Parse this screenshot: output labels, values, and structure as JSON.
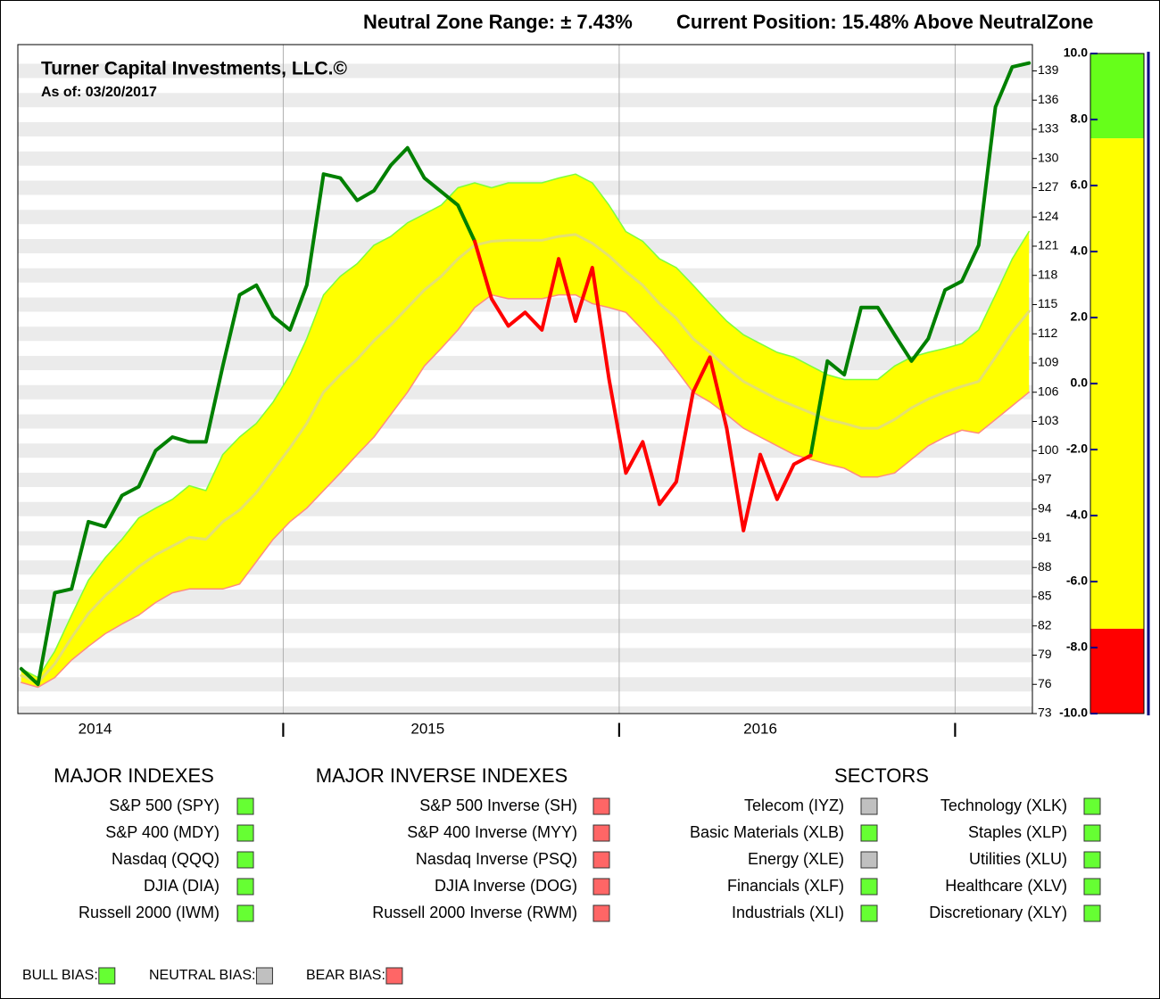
{
  "header": [
    "Neutral Zone Range: ± 7.43%",
    "Current Position: 15.48% Above NeutralZone"
  ],
  "chart_data": [
    {
      "type": "line",
      "title": "Turner Capital Investments, LLC.©",
      "subtitle": "As of: 03/20/2017",
      "x": [
        2014.22,
        2014.27,
        2014.32,
        2014.37,
        2014.42,
        2014.47,
        2014.52,
        2014.57,
        2014.62,
        2014.67,
        2014.72,
        2014.77,
        2014.82,
        2014.87,
        2014.92,
        2014.97,
        2015.02,
        2015.07,
        2015.12,
        2015.17,
        2015.22,
        2015.27,
        2015.32,
        2015.37,
        2015.42,
        2015.47,
        2015.52,
        2015.57,
        2015.62,
        2015.67,
        2015.72,
        2015.77,
        2015.82,
        2015.87,
        2015.92,
        2015.97,
        2016.02,
        2016.07,
        2016.12,
        2016.17,
        2016.22,
        2016.27,
        2016.32,
        2016.37,
        2016.42,
        2016.47,
        2016.52,
        2016.57,
        2016.62,
        2016.67,
        2016.72,
        2016.77,
        2016.82,
        2016.87,
        2016.92,
        2016.97,
        2017.02,
        2017.07,
        2017.12,
        2017.17,
        2017.22
      ],
      "series": [
        {
          "color": "#7cff3c",
          "values": [
            77.6,
            76.7,
            79.4,
            83.1,
            86.7,
            89,
            90.9,
            93.1,
            94.1,
            95,
            96.4,
            95.9,
            99.6,
            101.4,
            102.8,
            105,
            107.8,
            111.5,
            116,
            117.9,
            119.2,
            121.1,
            122,
            123.4,
            124.3,
            125.2,
            127,
            127.5,
            127,
            127.5,
            127.5,
            127.5,
            128,
            128.4,
            127.5,
            125.2,
            122.5,
            121.5,
            119.7,
            118.8,
            117,
            115.1,
            113.3,
            111.9,
            111,
            110.1,
            109.6,
            108.7,
            107.8,
            107.3,
            107.3,
            107.3,
            108.7,
            109.6,
            110.1,
            110.5,
            111,
            112.4,
            116,
            119.7,
            122.5
          ]
        },
        {
          "color": "#ff8a80",
          "values": [
            76.2,
            75.7,
            76.7,
            78.5,
            79.9,
            81.2,
            82.2,
            83.1,
            84.4,
            85.4,
            85.8,
            85.8,
            85.8,
            86.3,
            88.6,
            90.9,
            92.7,
            94.1,
            95.9,
            97.7,
            99.6,
            101.4,
            103.7,
            106,
            108.7,
            110.5,
            112.4,
            114.7,
            116,
            115.6,
            115.6,
            115.6,
            116,
            116,
            115.1,
            114.7,
            114.2,
            112.4,
            110.5,
            108.3,
            106,
            105,
            103.7,
            102.3,
            101.4,
            100.5,
            99.6,
            99.1,
            98.6,
            98.2,
            97.3,
            97.3,
            97.7,
            99.1,
            100.5,
            101.4,
            102.1,
            101.8,
            103.2,
            104.6,
            106
          ]
        },
        {
          "color": "#e4e070",
          "values": [
            76.9,
            76.2,
            78.1,
            80.8,
            83.3,
            85.1,
            86.6,
            88.1,
            89.3,
            90.2,
            91.1,
            90.9,
            92.7,
            93.9,
            95.7,
            98,
            100.3,
            102.8,
            106,
            107.8,
            109.4,
            111.3,
            112.9,
            114.7,
            116.5,
            117.9,
            119.7,
            121.1,
            121.5,
            121.6,
            121.6,
            121.6,
            122,
            122.2,
            121.3,
            120,
            118.4,
            117,
            115.1,
            113.6,
            111.5,
            110.1,
            108.5,
            107.1,
            106.2,
            105.3,
            104.6,
            103.9,
            103.2,
            102.8,
            102.3,
            102.3,
            103.2,
            104.4,
            105.3,
            106,
            106.6,
            107.1,
            109.6,
            112.2,
            114.3
          ]
        },
        {
          "color": "#008000",
          "values": [
            77.6,
            76,
            85.4,
            85.8,
            92.7,
            92.2,
            95.4,
            96.3,
            100,
            101.4,
            100.9,
            100.9,
            108.7,
            116,
            117,
            113.8,
            112.4,
            117,
            128.4,
            128,
            125.7,
            126.7,
            129.3,
            131.1,
            128,
            126.6,
            125.2,
            121.5,
            null,
            null,
            null,
            null,
            null,
            null,
            null,
            null,
            null,
            null,
            null,
            null,
            null,
            null,
            null,
            null,
            null,
            null,
            null,
            99.5,
            109.2,
            107.8,
            114.7,
            114.7,
            111.9,
            109.2,
            111.5,
            116.5,
            117.4,
            121.1,
            135.3,
            139.4,
            139.8
          ]
        },
        {
          "color": "#ff0000",
          "values": [
            null,
            null,
            null,
            null,
            null,
            null,
            null,
            null,
            null,
            null,
            null,
            null,
            null,
            null,
            null,
            null,
            null,
            null,
            null,
            null,
            null,
            null,
            null,
            null,
            null,
            null,
            null,
            121.5,
            115.6,
            112.8,
            114.2,
            112.4,
            119.7,
            113.3,
            118.8,
            107.3,
            97.7,
            100.9,
            94.5,
            96.8,
            106,
            109.6,
            102.3,
            91.8,
            99.6,
            95,
            98.6,
            99.5,
            null,
            null,
            null,
            null,
            null,
            null,
            null,
            null,
            null,
            null,
            null,
            null,
            null
          ]
        }
      ],
      "fill_between": [
        0,
        1
      ],
      "fill_color": "#ffff00",
      "xlim": [
        2014.21,
        2017.23
      ],
      "xticks": [
        {
          "value": 2014.44,
          "label": "2014"
        },
        {
          "value": 2015.0,
          "label": "|"
        },
        {
          "value": 2015.43,
          "label": "2015"
        },
        {
          "value": 2016.0,
          "label": "|"
        },
        {
          "value": 2016.42,
          "label": "2016"
        },
        {
          "value": 2017.0,
          "label": "|"
        }
      ],
      "ylim": [
        73,
        141.7
      ],
      "yticks": [
        73,
        76,
        79,
        82,
        85,
        88,
        91,
        94,
        97,
        100,
        103,
        106,
        109,
        112,
        115,
        118,
        121,
        124,
        127,
        130,
        133,
        136,
        139
      ],
      "grid": true
    },
    {
      "type": "gauge",
      "ylim": [
        -10,
        10
      ],
      "yticks": [
        {
          "value": 10,
          "label": "10.0"
        },
        {
          "value": 8,
          "label": "8.0"
        },
        {
          "value": 6,
          "label": "6.0"
        },
        {
          "value": 4,
          "label": "4.0"
        },
        {
          "value": 2,
          "label": "2.0"
        },
        {
          "value": 0,
          "label": "0.0"
        },
        {
          "value": -2,
          "label": "-2.0"
        },
        {
          "value": -4,
          "label": "-4.0"
        },
        {
          "value": -6,
          "label": "-6.0"
        },
        {
          "value": -8,
          "label": "-8.0"
        },
        {
          "value": -10,
          "label": "-10.0"
        }
      ],
      "zones": [
        {
          "from": 7.43,
          "to": 10,
          "color": "#66ff1a"
        },
        {
          "from": -7.43,
          "to": 7.43,
          "color": "#ffff00"
        },
        {
          "from": -10,
          "to": -7.43,
          "color": "#ff0000"
        }
      ]
    }
  ],
  "panels": [
    {
      "title": "MAJOR INDEXES",
      "items": [
        {
          "label": "S&P 500 (SPY)",
          "color": "#66ff33"
        },
        {
          "label": "S&P 400 (MDY)",
          "color": "#66ff33"
        },
        {
          "label": "Nasdaq (QQQ)",
          "color": "#66ff33"
        },
        {
          "label": "DJIA (DIA)",
          "color": "#66ff33"
        },
        {
          "label": "Russell 2000 (IWM)",
          "color": "#66ff33"
        }
      ]
    },
    {
      "title": "MAJOR INVERSE INDEXES",
      "items": [
        {
          "label": "S&P 500 Inverse (SH)",
          "color": "#ff6666"
        },
        {
          "label": "S&P 400 Inverse (MYY)",
          "color": "#ff6666"
        },
        {
          "label": "Nasdaq Inverse (PSQ)",
          "color": "#ff6666"
        },
        {
          "label": "DJIA Inverse (DOG)",
          "color": "#ff6666"
        },
        {
          "label": "Russell 2000 Inverse (RWM)",
          "color": "#ff6666"
        }
      ]
    },
    {
      "title": "SECTORS",
      "items": [
        {
          "label": "Telecom (IYZ)",
          "color": "#c0c0c0"
        },
        {
          "label": "Basic Materials (XLB)",
          "color": "#66ff33"
        },
        {
          "label": "Energy (XLE)",
          "color": "#c0c0c0"
        },
        {
          "label": "Financials (XLF)",
          "color": "#66ff33"
        },
        {
          "label": "Industrials (XLI)",
          "color": "#66ff33"
        },
        {
          "label": "Technology (XLK)",
          "color": "#66ff33"
        },
        {
          "label": "Staples (XLP)",
          "color": "#66ff33"
        },
        {
          "label": "Utilities (XLU)",
          "color": "#66ff33"
        },
        {
          "label": "Healthcare (XLV)",
          "color": "#66ff33"
        },
        {
          "label": "Discretionary (XLY)",
          "color": "#66ff33"
        }
      ]
    }
  ],
  "bias_legend": [
    {
      "label": "BULL BIAS:",
      "color": "#66ff33"
    },
    {
      "label": "NEUTRAL BIAS:",
      "color": "#c0c0c0"
    },
    {
      "label": "BEAR BIAS:",
      "color": "#ff6666"
    }
  ]
}
